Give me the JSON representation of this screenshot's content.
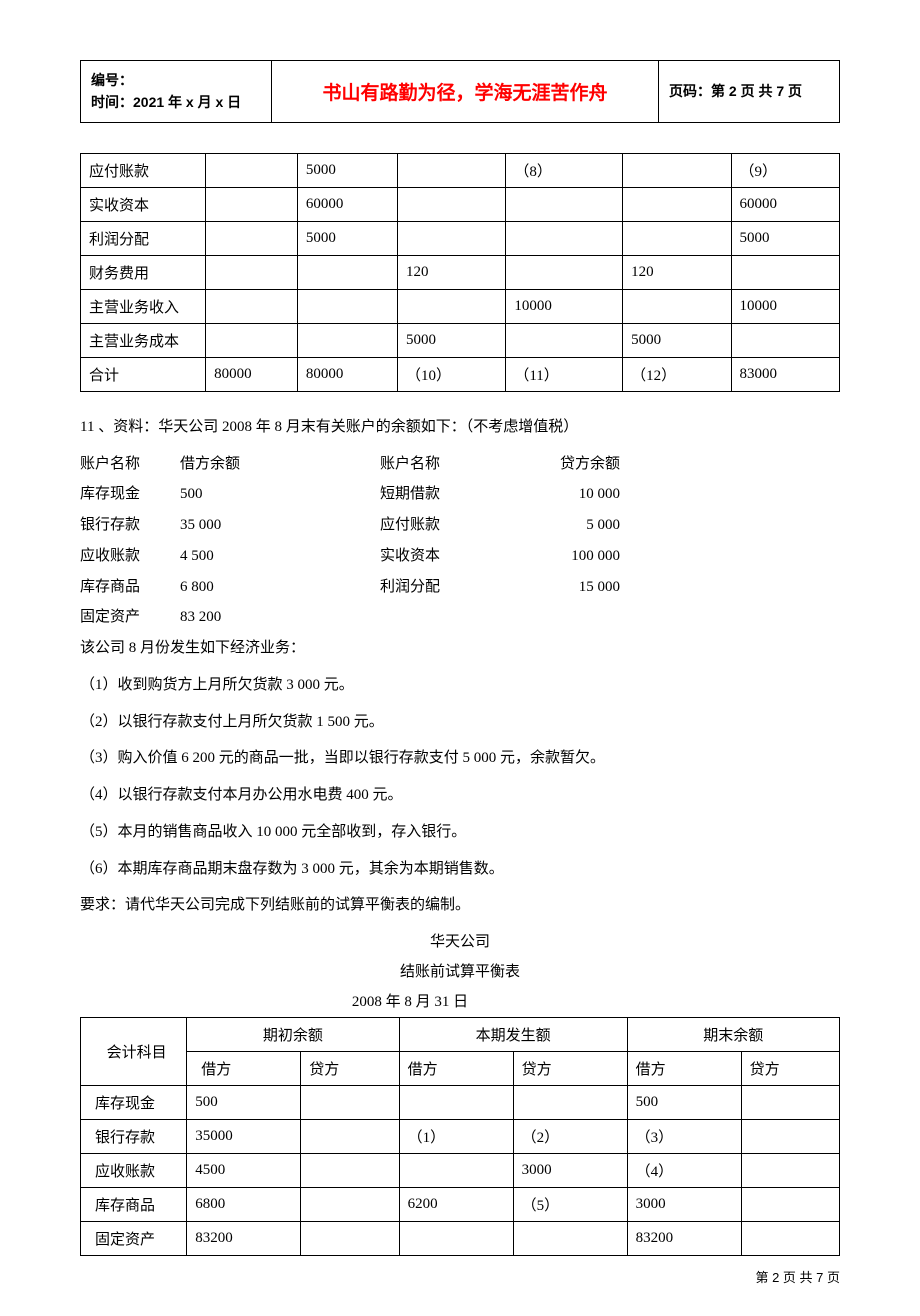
{
  "header": {
    "bianhao_label": "编号：",
    "time_label": "时间：2021 年 x 月 x 日",
    "motto": "书山有路勤为径，学海无涯苦作舟",
    "page_label": "页码：第 2 页 共 7 页"
  },
  "table1": {
    "type": "table",
    "rows": [
      [
        "应付账款",
        "",
        "5000",
        "",
        "（8）",
        "",
        "（9）"
      ],
      [
        "实收资本",
        "",
        "60000",
        "",
        "",
        "",
        "60000"
      ],
      [
        "利润分配",
        "",
        "5000",
        "",
        "",
        "",
        "5000"
      ],
      [
        "财务费用",
        "",
        "",
        "120",
        "",
        "120",
        ""
      ],
      [
        "主营业务收入",
        "",
        "",
        "",
        "10000",
        "",
        "10000"
      ],
      [
        "主营业务成本",
        "",
        "",
        "5000",
        "",
        "5000",
        ""
      ],
      [
        "合计",
        "80000",
        "80000",
        "（10）",
        "（11）",
        "（12）",
        "83000"
      ]
    ]
  },
  "q11_intro": "11 、资料：华天公司 2008 年 8 月末有关账户的余额如下：（不考虑增值税）",
  "balances": {
    "header_left_name": "账户名称",
    "header_left_val": "借方余额",
    "header_right_name": "账户名称",
    "header_right_val": "贷方余额",
    "left": [
      [
        "库存现金",
        "500"
      ],
      [
        "银行存款",
        "35 000"
      ],
      [
        "应收账款",
        "4 500"
      ],
      [
        "库存商品",
        "6 800"
      ],
      [
        "固定资产",
        "83 200"
      ]
    ],
    "right": [
      [
        "短期借款",
        "10 000"
      ],
      [
        "应付账款",
        "5 000"
      ],
      [
        "实收资本",
        "100 000"
      ],
      [
        "利润分配",
        "15 000"
      ]
    ]
  },
  "narrative": {
    "line0": "该公司 8 月份发生如下经济业务：",
    "line1": "（1）收到购货方上月所欠货款 3 000 元。",
    "line2": "（2）以银行存款支付上月所欠货款 1 500 元。",
    "line3": "（3）购入价值 6 200 元的商品一批，当即以银行存款支付 5 000 元，余款暂欠。",
    "line4": "（4）以银行存款支付本月办公用水电费 400 元。",
    "line5": "（5）本月的销售商品收入 10 000 元全部收到，存入银行。",
    "line6": "（6）本期库存商品期末盘存数为 3 000 元，其余为本期销售数。",
    "req": "要求：请代华天公司完成下列结账前的试算平衡表的编制。"
  },
  "company_title": "华天公司",
  "sheet_title": "结账前试算平衡表",
  "sheet_date": "2008 年 8 月 31 日",
  "table2": {
    "type": "table",
    "header_row1": [
      "会计科目",
      "期初余额",
      "本期发生额",
      "期末余额"
    ],
    "header_row2": [
      "借方",
      "贷方",
      "借方",
      "贷方",
      "借方",
      "贷方"
    ],
    "rows": [
      [
        "库存现金",
        "500",
        "",
        "",
        "",
        "500",
        ""
      ],
      [
        "银行存款",
        "35000",
        "",
        "（1）",
        "（2）",
        "（3）",
        ""
      ],
      [
        "应收账款",
        "4500",
        "",
        "",
        "3000",
        "（4）",
        ""
      ],
      [
        "库存商品",
        "6800",
        "",
        "6200",
        "（5）",
        "3000",
        ""
      ],
      [
        "固定资产",
        "83200",
        "",
        "",
        "",
        "83200",
        ""
      ]
    ]
  },
  "footer": "第 2 页 共 7 页"
}
